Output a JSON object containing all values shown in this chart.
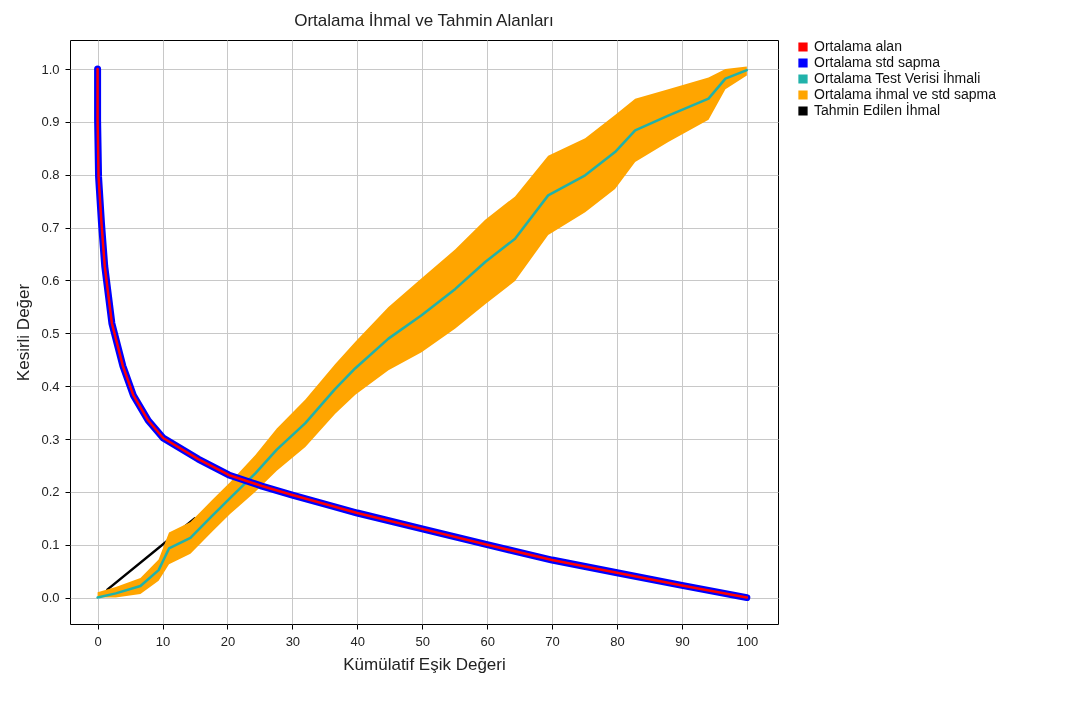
{
  "chart_data": {
    "type": "line",
    "title": "Ortalama İhmal ve Tahmin Alanları",
    "xlabel": "Kümülatif Eşik Değeri",
    "ylabel": "Kesirli Değer",
    "xlim": [
      -4.25,
      104.8
    ],
    "ylim": [
      -0.05,
      1.055
    ],
    "xticks": [
      0,
      10,
      20,
      30,
      40,
      50,
      60,
      70,
      80,
      90,
      100
    ],
    "yticks": [
      {
        "value": 0,
        "label": "0.0"
      },
      0.1,
      0.2,
      0.3,
      0.4,
      0.5,
      0.6,
      0.7,
      0.8,
      0.9,
      {
        "value": 1,
        "label": "1.0"
      }
    ],
    "grid": true,
    "legend": "top right",
    "series": [
      {
        "name": "Ortalama alan",
        "color": "#ff0000",
        "type": "line",
        "x": [
          0,
          0,
          0.15,
          0.6,
          1.1,
          2.2,
          3.9,
          5.5,
          7.8,
          10.1,
          15.5,
          20.2,
          25.3,
          30,
          40,
          50,
          60,
          70,
          80,
          90,
          100
        ],
        "values": [
          1.0,
          0.904,
          0.796,
          0.708,
          0.627,
          0.519,
          0.438,
          0.383,
          0.335,
          0.302,
          0.262,
          0.232,
          0.211,
          0.194,
          0.16,
          0.13,
          0.1,
          0.071,
          0.047,
          0.023,
          0
        ]
      },
      {
        "name": "Ortalama std sapma",
        "color": "#0000ff",
        "type": "line",
        "x": [
          0,
          0,
          0.15,
          0.6,
          1.1,
          2.2,
          3.9,
          5.5,
          7.8,
          10.1,
          15.5,
          20.2,
          25.3,
          30,
          40,
          50,
          60,
          70,
          80,
          90,
          100
        ],
        "values": [
          1.0,
          0.904,
          0.796,
          0.708,
          0.627,
          0.519,
          0.438,
          0.383,
          0.335,
          0.302,
          0.262,
          0.232,
          0.211,
          0.194,
          0.16,
          0.13,
          0.1,
          0.071,
          0.047,
          0.023,
          0
        ]
      },
      {
        "name": "Ortalama Test Verisi İhmali",
        "color": "#20b2aa",
        "type": "line",
        "x": [
          0,
          2.8,
          6.6,
          9.4,
          11,
          14.3,
          17.6,
          20.4,
          24.3,
          27.6,
          32,
          36.6,
          39.7,
          44.8,
          49.9,
          55.1,
          59.7,
          64.3,
          69.4,
          75.1,
          79.7,
          82.8,
          87.9,
          94.1,
          96.7,
          100
        ],
        "values": [
          0,
          0.008,
          0.022,
          0.052,
          0.093,
          0.113,
          0.154,
          0.188,
          0.235,
          0.28,
          0.33,
          0.395,
          0.434,
          0.49,
          0.534,
          0.584,
          0.635,
          0.679,
          0.761,
          0.799,
          0.843,
          0.884,
          0.912,
          0.944,
          0.982,
          0.998
        ]
      },
      {
        "name": "Ortalama ihmal ve std sapma",
        "color": "#ffa500",
        "type": "line",
        "x": [
          0,
          2.8,
          6.6,
          9.4,
          11,
          14.3,
          17.6,
          20.4,
          24.3,
          27.6,
          32,
          36.6,
          39.7,
          44.8,
          49.9,
          55.1,
          59.7,
          64.3,
          69.4,
          75.1,
          79.7,
          82.8,
          87.9,
          94.1,
          96.7,
          100
        ],
        "values": [
          null,
          null,
          null,
          null,
          null,
          null,
          null,
          null,
          null,
          null,
          null,
          null,
          null,
          null,
          null,
          null,
          null,
          null,
          null,
          null,
          null,
          null,
          null,
          null,
          null,
          null
        ],
        "lower": [
          0,
          0,
          0.007,
          0.032,
          0.063,
          0.083,
          0.124,
          0.158,
          0.2,
          0.24,
          0.285,
          0.348,
          0.384,
          0.43,
          0.464,
          0.509,
          0.555,
          0.599,
          0.686,
          0.729,
          0.773,
          0.824,
          0.862,
          0.904,
          0.962,
          0.988
        ],
        "upper": [
          0.01,
          0.02,
          0.037,
          0.072,
          0.123,
          0.143,
          0.184,
          0.218,
          0.27,
          0.32,
          0.375,
          0.442,
          0.484,
          0.55,
          0.604,
          0.659,
          0.715,
          0.759,
          0.836,
          0.869,
          0.913,
          0.944,
          0.962,
          0.984,
          1.0,
          1.005
        ]
      },
      {
        "name": "Tahmin Edilen İhmal",
        "color": "#000000",
        "type": "line",
        "x": [
          1.5,
          15
        ],
        "values": [
          0.015,
          0.15
        ]
      }
    ]
  }
}
